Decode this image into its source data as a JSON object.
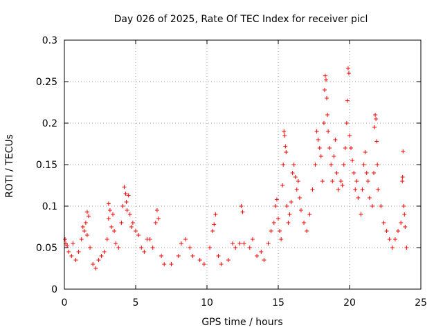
{
  "chart_data": {
    "type": "scatter",
    "title": "Day 026 of 2025, Rate Of TEC Index for receiver picl",
    "xlabel": "GPS time / hours",
    "ylabel": "ROTI / TECUs",
    "xlim": [
      0,
      25
    ],
    "ylim": [
      0,
      0.3
    ],
    "xticks": [
      0,
      5,
      10,
      15,
      20,
      25
    ],
    "xtick_labels": [
      "0",
      "5",
      "10",
      "15",
      "20",
      "25"
    ],
    "yticks": [
      0,
      0.05,
      0.1,
      0.15,
      0.2,
      0.25,
      0.3
    ],
    "ytick_labels": [
      "0",
      "0.05",
      "0.1",
      "0.15",
      "0.2",
      "0.25",
      "0.3"
    ],
    "grid": true,
    "marker": "+",
    "color": "#ff0000",
    "series": [
      {
        "name": "ROTI",
        "points": [
          [
            0.05,
            0.06
          ],
          [
            0.1,
            0.055
          ],
          [
            0.2,
            0.052
          ],
          [
            0.3,
            0.045
          ],
          [
            0.5,
            0.04
          ],
          [
            0.6,
            0.055
          ],
          [
            0.8,
            0.035
          ],
          [
            1.0,
            0.045
          ],
          [
            1.2,
            0.06
          ],
          [
            1.3,
            0.075
          ],
          [
            1.4,
            0.07
          ],
          [
            1.5,
            0.08
          ],
          [
            1.6,
            0.065
          ],
          [
            1.6,
            0.093
          ],
          [
            1.7,
            0.088
          ],
          [
            1.8,
            0.05
          ],
          [
            2.0,
            0.03
          ],
          [
            2.2,
            0.025
          ],
          [
            2.4,
            0.035
          ],
          [
            2.6,
            0.04
          ],
          [
            2.8,
            0.045
          ],
          [
            3.0,
            0.06
          ],
          [
            3.1,
            0.085
          ],
          [
            3.1,
            0.103
          ],
          [
            3.2,
            0.095
          ],
          [
            3.3,
            0.075
          ],
          [
            3.4,
            0.09
          ],
          [
            3.5,
            0.07
          ],
          [
            3.6,
            0.055
          ],
          [
            3.8,
            0.05
          ],
          [
            4.0,
            0.08
          ],
          [
            4.1,
            0.1
          ],
          [
            4.2,
            0.123
          ],
          [
            4.3,
            0.115
          ],
          [
            4.35,
            0.105
          ],
          [
            4.4,
            0.095
          ],
          [
            4.5,
            0.113
          ],
          [
            4.6,
            0.09
          ],
          [
            4.7,
            0.075
          ],
          [
            4.8,
            0.08
          ],
          [
            5.0,
            0.07
          ],
          [
            5.2,
            0.065
          ],
          [
            5.4,
            0.05
          ],
          [
            5.6,
            0.045
          ],
          [
            5.8,
            0.06
          ],
          [
            6.0,
            0.06
          ],
          [
            6.2,
            0.05
          ],
          [
            6.4,
            0.08
          ],
          [
            6.5,
            0.095
          ],
          [
            6.6,
            0.085
          ],
          [
            6.8,
            0.04
          ],
          [
            7.0,
            0.03
          ],
          [
            7.5,
            0.03
          ],
          [
            8.0,
            0.04
          ],
          [
            8.2,
            0.055
          ],
          [
            8.5,
            0.06
          ],
          [
            8.8,
            0.05
          ],
          [
            9.0,
            0.04
          ],
          [
            9.5,
            0.035
          ],
          [
            9.8,
            0.03
          ],
          [
            10.2,
            0.05
          ],
          [
            10.4,
            0.07
          ],
          [
            10.5,
            0.078
          ],
          [
            10.6,
            0.09
          ],
          [
            10.8,
            0.04
          ],
          [
            11.0,
            0.03
          ],
          [
            11.5,
            0.035
          ],
          [
            11.8,
            0.055
          ],
          [
            12.0,
            0.05
          ],
          [
            12.3,
            0.055
          ],
          [
            12.4,
            0.1
          ],
          [
            12.5,
            0.093
          ],
          [
            12.6,
            0.055
          ],
          [
            13.0,
            0.05
          ],
          [
            13.2,
            0.06
          ],
          [
            13.5,
            0.04
          ],
          [
            13.8,
            0.045
          ],
          [
            14.0,
            0.035
          ],
          [
            14.3,
            0.055
          ],
          [
            14.5,
            0.07
          ],
          [
            14.7,
            0.08
          ],
          [
            14.8,
            0.1
          ],
          [
            14.9,
            0.108
          ],
          [
            15.0,
            0.085
          ],
          [
            15.1,
            0.07
          ],
          [
            15.2,
            0.06
          ],
          [
            15.3,
            0.125
          ],
          [
            15.35,
            0.15
          ],
          [
            15.4,
            0.19
          ],
          [
            15.45,
            0.185
          ],
          [
            15.5,
            0.172
          ],
          [
            15.55,
            0.165
          ],
          [
            15.6,
            0.1
          ],
          [
            15.7,
            0.08
          ],
          [
            15.8,
            0.09
          ],
          [
            15.9,
            0.105
          ],
          [
            16.0,
            0.14
          ],
          [
            16.1,
            0.15
          ],
          [
            16.2,
            0.135
          ],
          [
            16.3,
            0.12
          ],
          [
            16.4,
            0.13
          ],
          [
            16.5,
            0.11
          ],
          [
            16.6,
            0.095
          ],
          [
            16.8,
            0.08
          ],
          [
            17.0,
            0.07
          ],
          [
            17.2,
            0.09
          ],
          [
            17.4,
            0.12
          ],
          [
            17.6,
            0.15
          ],
          [
            17.7,
            0.19
          ],
          [
            17.8,
            0.18
          ],
          [
            17.9,
            0.17
          ],
          [
            18.0,
            0.16
          ],
          [
            18.1,
            0.13
          ],
          [
            18.2,
            0.2
          ],
          [
            18.25,
            0.24
          ],
          [
            18.3,
            0.257
          ],
          [
            18.35,
            0.252
          ],
          [
            18.4,
            0.23
          ],
          [
            18.45,
            0.21
          ],
          [
            18.5,
            0.19
          ],
          [
            18.6,
            0.17
          ],
          [
            18.7,
            0.15
          ],
          [
            18.8,
            0.13
          ],
          [
            18.9,
            0.16
          ],
          [
            19.0,
            0.18
          ],
          [
            19.1,
            0.14
          ],
          [
            19.2,
            0.12
          ],
          [
            19.4,
            0.13
          ],
          [
            19.5,
            0.125
          ],
          [
            19.6,
            0.15
          ],
          [
            19.7,
            0.17
          ],
          [
            19.8,
            0.2
          ],
          [
            19.85,
            0.227
          ],
          [
            19.9,
            0.266
          ],
          [
            19.95,
            0.26
          ],
          [
            20.0,
            0.185
          ],
          [
            20.1,
            0.17
          ],
          [
            20.2,
            0.155
          ],
          [
            20.3,
            0.14
          ],
          [
            20.4,
            0.12
          ],
          [
            20.5,
            0.13
          ],
          [
            20.6,
            0.11
          ],
          [
            20.8,
            0.09
          ],
          [
            20.9,
            0.12
          ],
          [
            21.0,
            0.15
          ],
          [
            21.1,
            0.165
          ],
          [
            21.2,
            0.14
          ],
          [
            21.3,
            0.13
          ],
          [
            21.4,
            0.11
          ],
          [
            21.6,
            0.1
          ],
          [
            21.7,
            0.14
          ],
          [
            21.75,
            0.195
          ],
          [
            21.8,
            0.21
          ],
          [
            21.85,
            0.205
          ],
          [
            21.9,
            0.178
          ],
          [
            21.95,
            0.15
          ],
          [
            22.0,
            0.12
          ],
          [
            22.2,
            0.1
          ],
          [
            22.4,
            0.08
          ],
          [
            22.6,
            0.07
          ],
          [
            22.8,
            0.06
          ],
          [
            23.0,
            0.05
          ],
          [
            23.2,
            0.06
          ],
          [
            23.4,
            0.07
          ],
          [
            23.6,
            0.08
          ],
          [
            23.7,
            0.13
          ],
          [
            23.72,
            0.135
          ],
          [
            23.75,
            0.166
          ],
          [
            23.8,
            0.1
          ],
          [
            23.85,
            0.09
          ],
          [
            23.9,
            0.075
          ],
          [
            24.0,
            0.05
          ]
        ]
      }
    ]
  }
}
